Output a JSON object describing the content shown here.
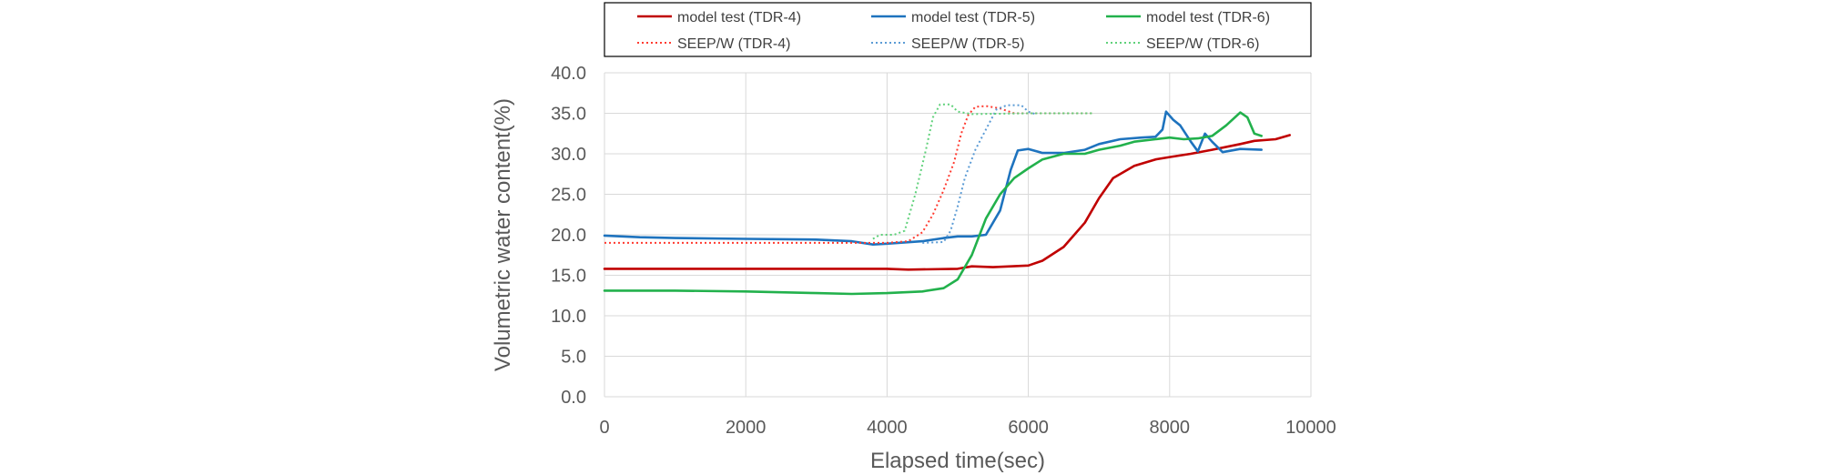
{
  "chart_data": {
    "type": "line",
    "title": "",
    "xlabel": "Elapsed time(sec)",
    "ylabel": "Volumetric water content(%)",
    "xlim": [
      0,
      10000
    ],
    "ylim": [
      0,
      40
    ],
    "xticks": [
      0,
      2000,
      4000,
      6000,
      8000,
      10000
    ],
    "yticks": [
      "0.0",
      "5.0",
      "10.0",
      "15.0",
      "20.0",
      "25.0",
      "30.0",
      "35.0",
      "40.0"
    ],
    "grid": true,
    "legend_position": "top",
    "series": [
      {
        "name": "model test (TDR-4)",
        "color": "#c00000",
        "style": "solid",
        "points": [
          [
            0,
            15.8
          ],
          [
            1000,
            15.8
          ],
          [
            2000,
            15.8
          ],
          [
            3000,
            15.8
          ],
          [
            4000,
            15.8
          ],
          [
            4300,
            15.7
          ],
          [
            5000,
            15.8
          ],
          [
            5200,
            16.1
          ],
          [
            5500,
            16.0
          ],
          [
            6000,
            16.2
          ],
          [
            6200,
            16.8
          ],
          [
            6500,
            18.5
          ],
          [
            6800,
            21.5
          ],
          [
            7000,
            24.5
          ],
          [
            7200,
            27.0
          ],
          [
            7500,
            28.5
          ],
          [
            7800,
            29.3
          ],
          [
            8000,
            29.6
          ],
          [
            8300,
            30.0
          ],
          [
            8600,
            30.5
          ],
          [
            9000,
            31.2
          ],
          [
            9200,
            31.6
          ],
          [
            9500,
            31.8
          ],
          [
            9700,
            32.3
          ]
        ]
      },
      {
        "name": "model test (TDR-5)",
        "color": "#1e73be",
        "style": "solid",
        "points": [
          [
            0,
            19.9
          ],
          [
            500,
            19.7
          ],
          [
            1000,
            19.6
          ],
          [
            2000,
            19.5
          ],
          [
            3000,
            19.4
          ],
          [
            3500,
            19.2
          ],
          [
            3800,
            18.8
          ],
          [
            4000,
            18.9
          ],
          [
            4500,
            19.2
          ],
          [
            4800,
            19.6
          ],
          [
            5000,
            19.8
          ],
          [
            5200,
            19.8
          ],
          [
            5400,
            20.0
          ],
          [
            5600,
            23.0
          ],
          [
            5750,
            28.0
          ],
          [
            5850,
            30.4
          ],
          [
            6000,
            30.6
          ],
          [
            6200,
            30.1
          ],
          [
            6500,
            30.1
          ],
          [
            6800,
            30.5
          ],
          [
            7000,
            31.2
          ],
          [
            7300,
            31.8
          ],
          [
            7600,
            32.0
          ],
          [
            7800,
            32.1
          ],
          [
            7900,
            33.0
          ],
          [
            7950,
            35.2
          ],
          [
            8050,
            34.2
          ],
          [
            8150,
            33.5
          ],
          [
            8300,
            31.5
          ],
          [
            8400,
            30.3
          ],
          [
            8500,
            32.5
          ],
          [
            8600,
            31.5
          ],
          [
            8750,
            30.2
          ],
          [
            9000,
            30.6
          ],
          [
            9300,
            30.5
          ]
        ]
      },
      {
        "name": "model test (TDR-6)",
        "color": "#22b14c",
        "style": "solid",
        "points": [
          [
            0,
            13.1
          ],
          [
            1000,
            13.1
          ],
          [
            2000,
            13.0
          ],
          [
            3000,
            12.8
          ],
          [
            3500,
            12.7
          ],
          [
            4000,
            12.8
          ],
          [
            4500,
            13.0
          ],
          [
            4800,
            13.4
          ],
          [
            5000,
            14.5
          ],
          [
            5200,
            17.5
          ],
          [
            5400,
            22.0
          ],
          [
            5600,
            25.0
          ],
          [
            5800,
            27.0
          ],
          [
            6000,
            28.2
          ],
          [
            6200,
            29.3
          ],
          [
            6500,
            30.0
          ],
          [
            6800,
            30.0
          ],
          [
            7000,
            30.5
          ],
          [
            7300,
            31.0
          ],
          [
            7500,
            31.5
          ],
          [
            7800,
            31.8
          ],
          [
            8000,
            32.0
          ],
          [
            8200,
            31.8
          ],
          [
            8400,
            31.9
          ],
          [
            8600,
            32.2
          ],
          [
            8800,
            33.5
          ],
          [
            9000,
            35.1
          ],
          [
            9100,
            34.5
          ],
          [
            9200,
            32.5
          ],
          [
            9300,
            32.2
          ]
        ]
      },
      {
        "name": "SEEP/W (TDR-4)",
        "color": "#ff3b30",
        "style": "dotted",
        "points": [
          [
            0,
            19.0
          ],
          [
            1000,
            19.0
          ],
          [
            2000,
            19.0
          ],
          [
            3000,
            19.0
          ],
          [
            3800,
            19.0
          ],
          [
            4000,
            19.0
          ],
          [
            4300,
            19.2
          ],
          [
            4500,
            20.3
          ],
          [
            4650,
            22.5
          ],
          [
            4800,
            25.5
          ],
          [
            4950,
            29.0
          ],
          [
            5050,
            32.5
          ],
          [
            5150,
            34.8
          ],
          [
            5250,
            35.8
          ],
          [
            5400,
            35.9
          ],
          [
            5600,
            35.6
          ],
          [
            5800,
            35.0
          ],
          [
            6500,
            35.0
          ],
          [
            6900,
            35.0
          ]
        ]
      },
      {
        "name": "SEEP/W (TDR-5)",
        "color": "#5b9bd5",
        "style": "dotted",
        "points": [
          [
            4500,
            19.0
          ],
          [
            4800,
            19.1
          ],
          [
            4900,
            20.5
          ],
          [
            5000,
            23.5
          ],
          [
            5100,
            27.0
          ],
          [
            5250,
            30.5
          ],
          [
            5400,
            33.0
          ],
          [
            5550,
            35.5
          ],
          [
            5700,
            36.0
          ],
          [
            5900,
            36.0
          ],
          [
            6000,
            35.2
          ],
          [
            6100,
            34.9
          ]
        ]
      },
      {
        "name": "SEEP/W (TDR-6)",
        "color": "#5fd17a",
        "style": "dotted",
        "points": [
          [
            3800,
            19.5
          ],
          [
            3900,
            20.0
          ],
          [
            4100,
            20.0
          ],
          [
            4250,
            20.5
          ],
          [
            4400,
            25.0
          ],
          [
            4550,
            30.5
          ],
          [
            4650,
            34.5
          ],
          [
            4750,
            36.1
          ],
          [
            4900,
            36.1
          ],
          [
            5000,
            35.2
          ],
          [
            5200,
            34.9
          ],
          [
            6000,
            35.0
          ],
          [
            6900,
            35.0
          ]
        ]
      }
    ]
  }
}
